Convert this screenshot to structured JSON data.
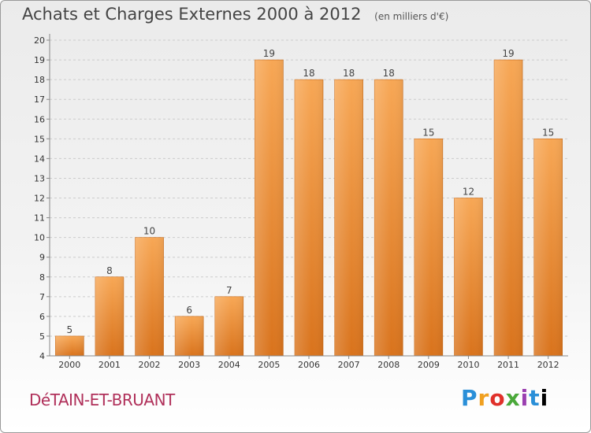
{
  "title": "Achats et Charges Externes 2000 à 2012",
  "subtitle": "(en milliers d'€)",
  "town": "DéTAIN-ET-BRUANT",
  "logo": [
    "P",
    "r",
    "o",
    "x",
    "i",
    "t",
    "i"
  ],
  "colors": {
    "bar_light": "#f7a755",
    "bar_dark": "#d9731c",
    "grid": "#cccccc",
    "axis": "#888888"
  },
  "chart_data": {
    "type": "bar",
    "categories": [
      "2000",
      "2001",
      "2002",
      "2003",
      "2004",
      "2005",
      "2006",
      "2007",
      "2008",
      "2009",
      "2010",
      "2011",
      "2012"
    ],
    "values": [
      5,
      8,
      10,
      6,
      7,
      19,
      18,
      18,
      18,
      15,
      12,
      19,
      15
    ],
    "title": "Achats et Charges Externes 2000 à 2012",
    "ylim": [
      4,
      20
    ],
    "yticks": [
      4,
      5,
      6,
      7,
      8,
      9,
      10,
      11,
      12,
      13,
      14,
      15,
      16,
      17,
      18,
      19,
      20
    ],
    "grid": true,
    "legend": "none"
  }
}
